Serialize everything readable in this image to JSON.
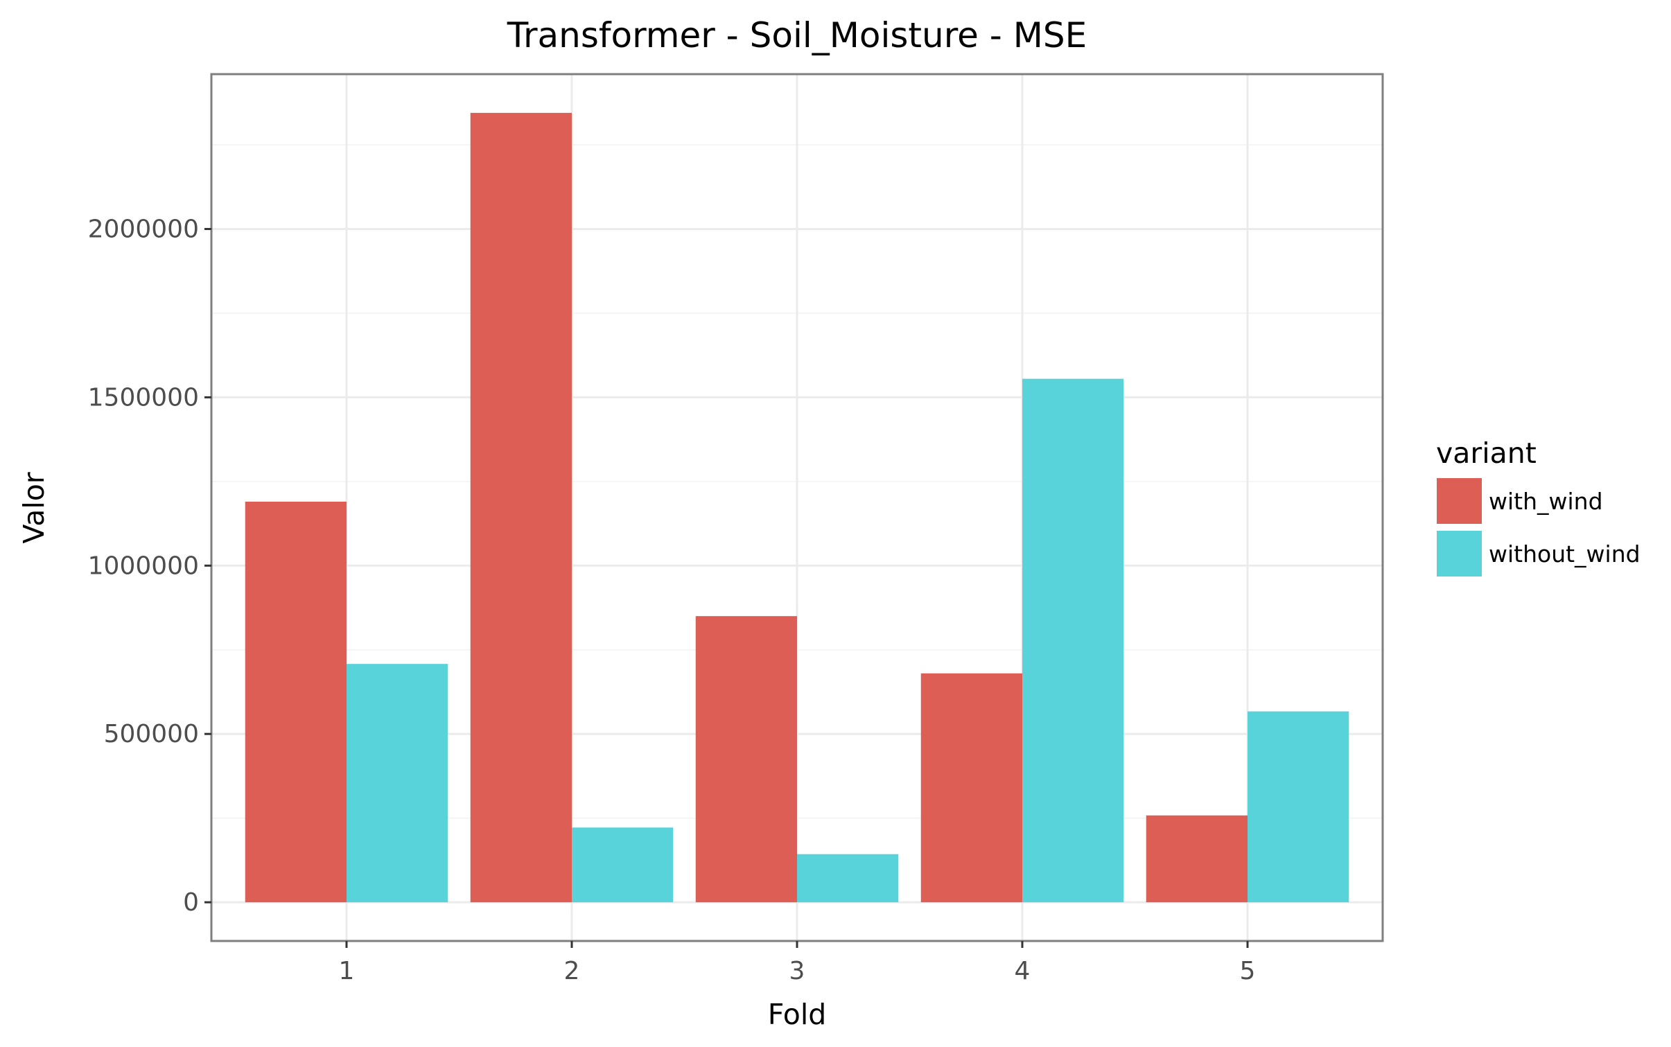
{
  "chart_data": {
    "type": "bar",
    "title": "Transformer - Soil_Moisture - MSE",
    "xlabel": "Fold",
    "ylabel": "Valor",
    "categories": [
      "1",
      "2",
      "3",
      "4",
      "5"
    ],
    "series": [
      {
        "name": "with_wind",
        "color": "#dc5e55",
        "values": [
          1190000,
          2345000,
          850000,
          680000,
          258000
        ]
      },
      {
        "name": "without_wind",
        "color": "#59d3da",
        "values": [
          708000,
          222000,
          143000,
          1555000,
          567000
        ]
      }
    ],
    "yticks": [
      0,
      500000,
      1000000,
      1500000,
      2000000
    ],
    "ytick_labels": [
      "0",
      "500000",
      "1000000",
      "1500000",
      "2000000"
    ],
    "ylim": [
      -115000,
      2460000
    ],
    "grid": true,
    "legend": {
      "title": "variant",
      "position": "right"
    }
  }
}
